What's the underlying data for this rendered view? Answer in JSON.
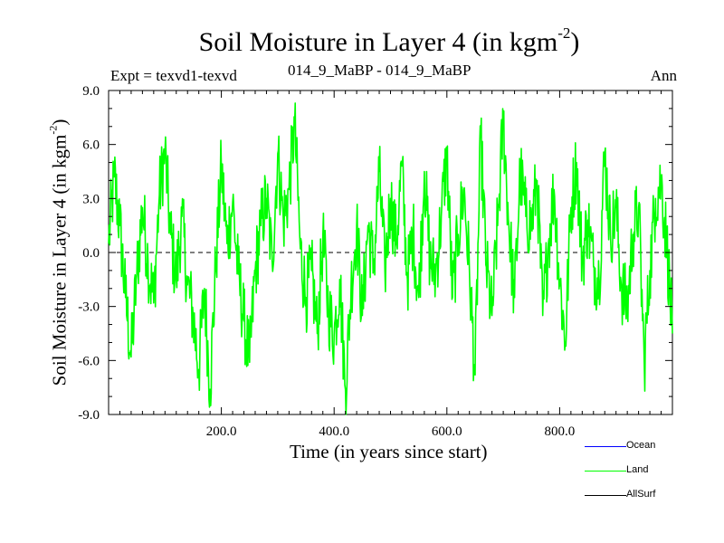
{
  "chart_data": {
    "type": "line",
    "title": "Soil Moisture in Layer 4 (in kgm",
    "title_sup": "-2",
    "title_close": ")",
    "subtitle_left": "Expt = texvd1-texvd",
    "subtitle_center": "014_9_MaBP - 014_9_MaBP",
    "subtitle_right": "Ann",
    "xlabel": "Time (in years since start)",
    "ylabel": "Soil Moisture in Layer 4 (in kgm",
    "ylabel_sup": "-2",
    "ylabel_close": ")",
    "xlim": [
      0,
      1000
    ],
    "ylim": [
      -9,
      9
    ],
    "x_ticks": [
      200,
      400,
      600,
      800
    ],
    "x_tick_labels": [
      "200.0",
      "400.0",
      "600.0",
      "800.0"
    ],
    "y_ticks": [
      -9,
      -6,
      -3,
      0,
      3,
      6,
      9
    ],
    "y_tick_labels": [
      "-9.0",
      "-6.0",
      "-3.0",
      "0.0",
      "3.0",
      "6.0",
      "9.0"
    ],
    "zero_line": "dashed",
    "legend_position": "bottom-right",
    "series": [
      {
        "name": "Ocean",
        "color": "#0000ff",
        "values": []
      },
      {
        "name": "Land",
        "color": "#00ff00",
        "x": [
          0,
          10,
          20,
          30,
          40,
          50,
          60,
          70,
          80,
          90,
          100,
          110,
          120,
          130,
          140,
          150,
          160,
          170,
          180,
          190,
          200,
          210,
          220,
          230,
          240,
          250,
          260,
          270,
          280,
          290,
          300,
          310,
          320,
          330,
          340,
          350,
          360,
          370,
          380,
          390,
          400,
          410,
          420,
          430,
          440,
          450,
          460,
          470,
          480,
          490,
          500,
          510,
          520,
          530,
          540,
          550,
          560,
          570,
          580,
          590,
          600,
          610,
          620,
          630,
          640,
          650,
          660,
          670,
          680,
          690,
          700,
          710,
          720,
          730,
          740,
          750,
          760,
          770,
          780,
          790,
          800,
          810,
          820,
          830,
          840,
          850,
          860,
          870,
          880,
          890,
          900,
          910,
          920,
          930,
          940,
          950,
          960,
          970,
          980,
          990,
          1000
        ],
        "values": [
          0.5,
          4.2,
          1.5,
          -2.5,
          -5.8,
          -1.2,
          2.5,
          -0.5,
          -2.8,
          3.2,
          5.6,
          1.0,
          -1.5,
          2.0,
          -1.8,
          -3.5,
          -6.5,
          -2.0,
          -7.6,
          -0.8,
          4.8,
          0.5,
          2.8,
          -1.2,
          -3.8,
          -6.1,
          -1.0,
          1.5,
          3.0,
          -0.5,
          5.5,
          1.8,
          3.5,
          7.2,
          0.2,
          -2.5,
          -1.0,
          -4.5,
          0.8,
          -3.2,
          -4.6,
          -1.5,
          -7.6,
          -2.0,
          1.5,
          -3.5,
          1.5,
          -0.8,
          4.5,
          -1.0,
          3.0,
          0.5,
          4.8,
          -1.5,
          1.2,
          -2.5,
          4.5,
          -0.5,
          -1.2,
          2.0,
          5.5,
          -2.5,
          1.0,
          3.5,
          -1.0,
          -6.8,
          6.4,
          -0.8,
          -3.5,
          1.5,
          7.4,
          1.5,
          -2.5,
          4.5,
          2.0,
          1.5,
          4.0,
          -3.5,
          0.5,
          3.5,
          -1.5,
          -5.0,
          2.5,
          5.0,
          -0.5,
          1.8,
          -0.8,
          -1.5,
          5.5,
          1.0,
          2.5,
          -2.0,
          -3.0,
          1.0,
          2.5,
          -6.2,
          -1.0,
          3.0,
          4.0,
          0.5,
          -4.5
        ]
      },
      {
        "name": "AllSurf",
        "color": "#000000",
        "values": []
      }
    ]
  }
}
